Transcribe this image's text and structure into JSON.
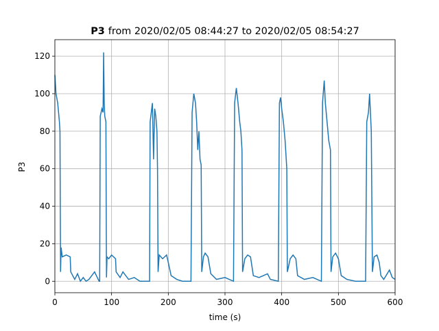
{
  "chart_data": {
    "type": "line",
    "title_bold": "P3",
    "title": "from 2020/02/05 08:44:27 to 2020/02/05 08:54:27",
    "xlabel": "time (s)",
    "ylabel": "P3",
    "xlim": [
      0,
      600
    ],
    "ylim": [
      -6.1,
      128.8
    ],
    "xticks": [
      0,
      100,
      200,
      300,
      400,
      500,
      600
    ],
    "yticks": [
      0,
      20,
      40,
      60,
      80,
      100,
      120
    ],
    "grid": true,
    "series": [
      {
        "color": "#1f77b4",
        "x": [
          0,
          2,
          5,
          8,
          9,
          10,
          11,
          13,
          20,
          27,
          28,
          35,
          40,
          45,
          50,
          55,
          60,
          70,
          78,
          79,
          80,
          83,
          85,
          86,
          87,
          88,
          90,
          91,
          92,
          95,
          100,
          107,
          108,
          115,
          120,
          130,
          140,
          150,
          160,
          167,
          168,
          170,
          172,
          174,
          176,
          178,
          180,
          181,
          182,
          184,
          190,
          197,
          200,
          205,
          215,
          225,
          240,
          242,
          245,
          248,
          250,
          252,
          254,
          256,
          258,
          259,
          262,
          265,
          270,
          275,
          285,
          300,
          315,
          317,
          320,
          323,
          326,
          328,
          330,
          331,
          335,
          340,
          345,
          350,
          360,
          375,
          380,
          394,
          396,
          398,
          400,
          403,
          406,
          409,
          410,
          415,
          420,
          425,
          428,
          440,
          455,
          470,
          472,
          475,
          477,
          480,
          483,
          486,
          487,
          490,
          495,
          500,
          505,
          515,
          530,
          548,
          550,
          553,
          555,
          558,
          560,
          563,
          568,
          572,
          575,
          580,
          590,
          595,
          600
        ],
        "values": [
          110,
          100,
          95,
          85,
          80,
          5,
          18,
          13,
          14,
          13,
          5,
          1,
          4,
          0,
          2,
          0,
          1,
          5,
          0,
          0,
          88,
          92,
          90,
          122,
          95,
          88,
          85,
          2,
          13,
          12,
          14,
          12,
          5,
          2,
          5,
          1,
          2,
          0,
          0,
          0,
          85,
          90,
          95,
          65,
          92,
          88,
          80,
          60,
          5,
          14,
          12,
          14,
          10,
          3,
          1,
          0,
          0,
          90,
          100,
          95,
          85,
          70,
          80,
          65,
          62,
          5,
          13,
          15,
          13,
          4,
          1,
          2,
          0,
          95,
          103,
          95,
          85,
          80,
          70,
          5,
          12,
          14,
          13,
          3,
          2,
          4,
          1,
          0,
          95,
          98,
          92,
          85,
          75,
          60,
          5,
          12,
          14,
          12,
          3,
          1,
          2,
          0,
          95,
          107,
          95,
          85,
          75,
          70,
          5,
          13,
          15,
          12,
          3,
          1,
          0,
          0,
          85,
          90,
          100,
          80,
          5,
          13,
          14,
          10,
          3,
          1,
          6,
          2,
          1
        ]
      }
    ]
  }
}
